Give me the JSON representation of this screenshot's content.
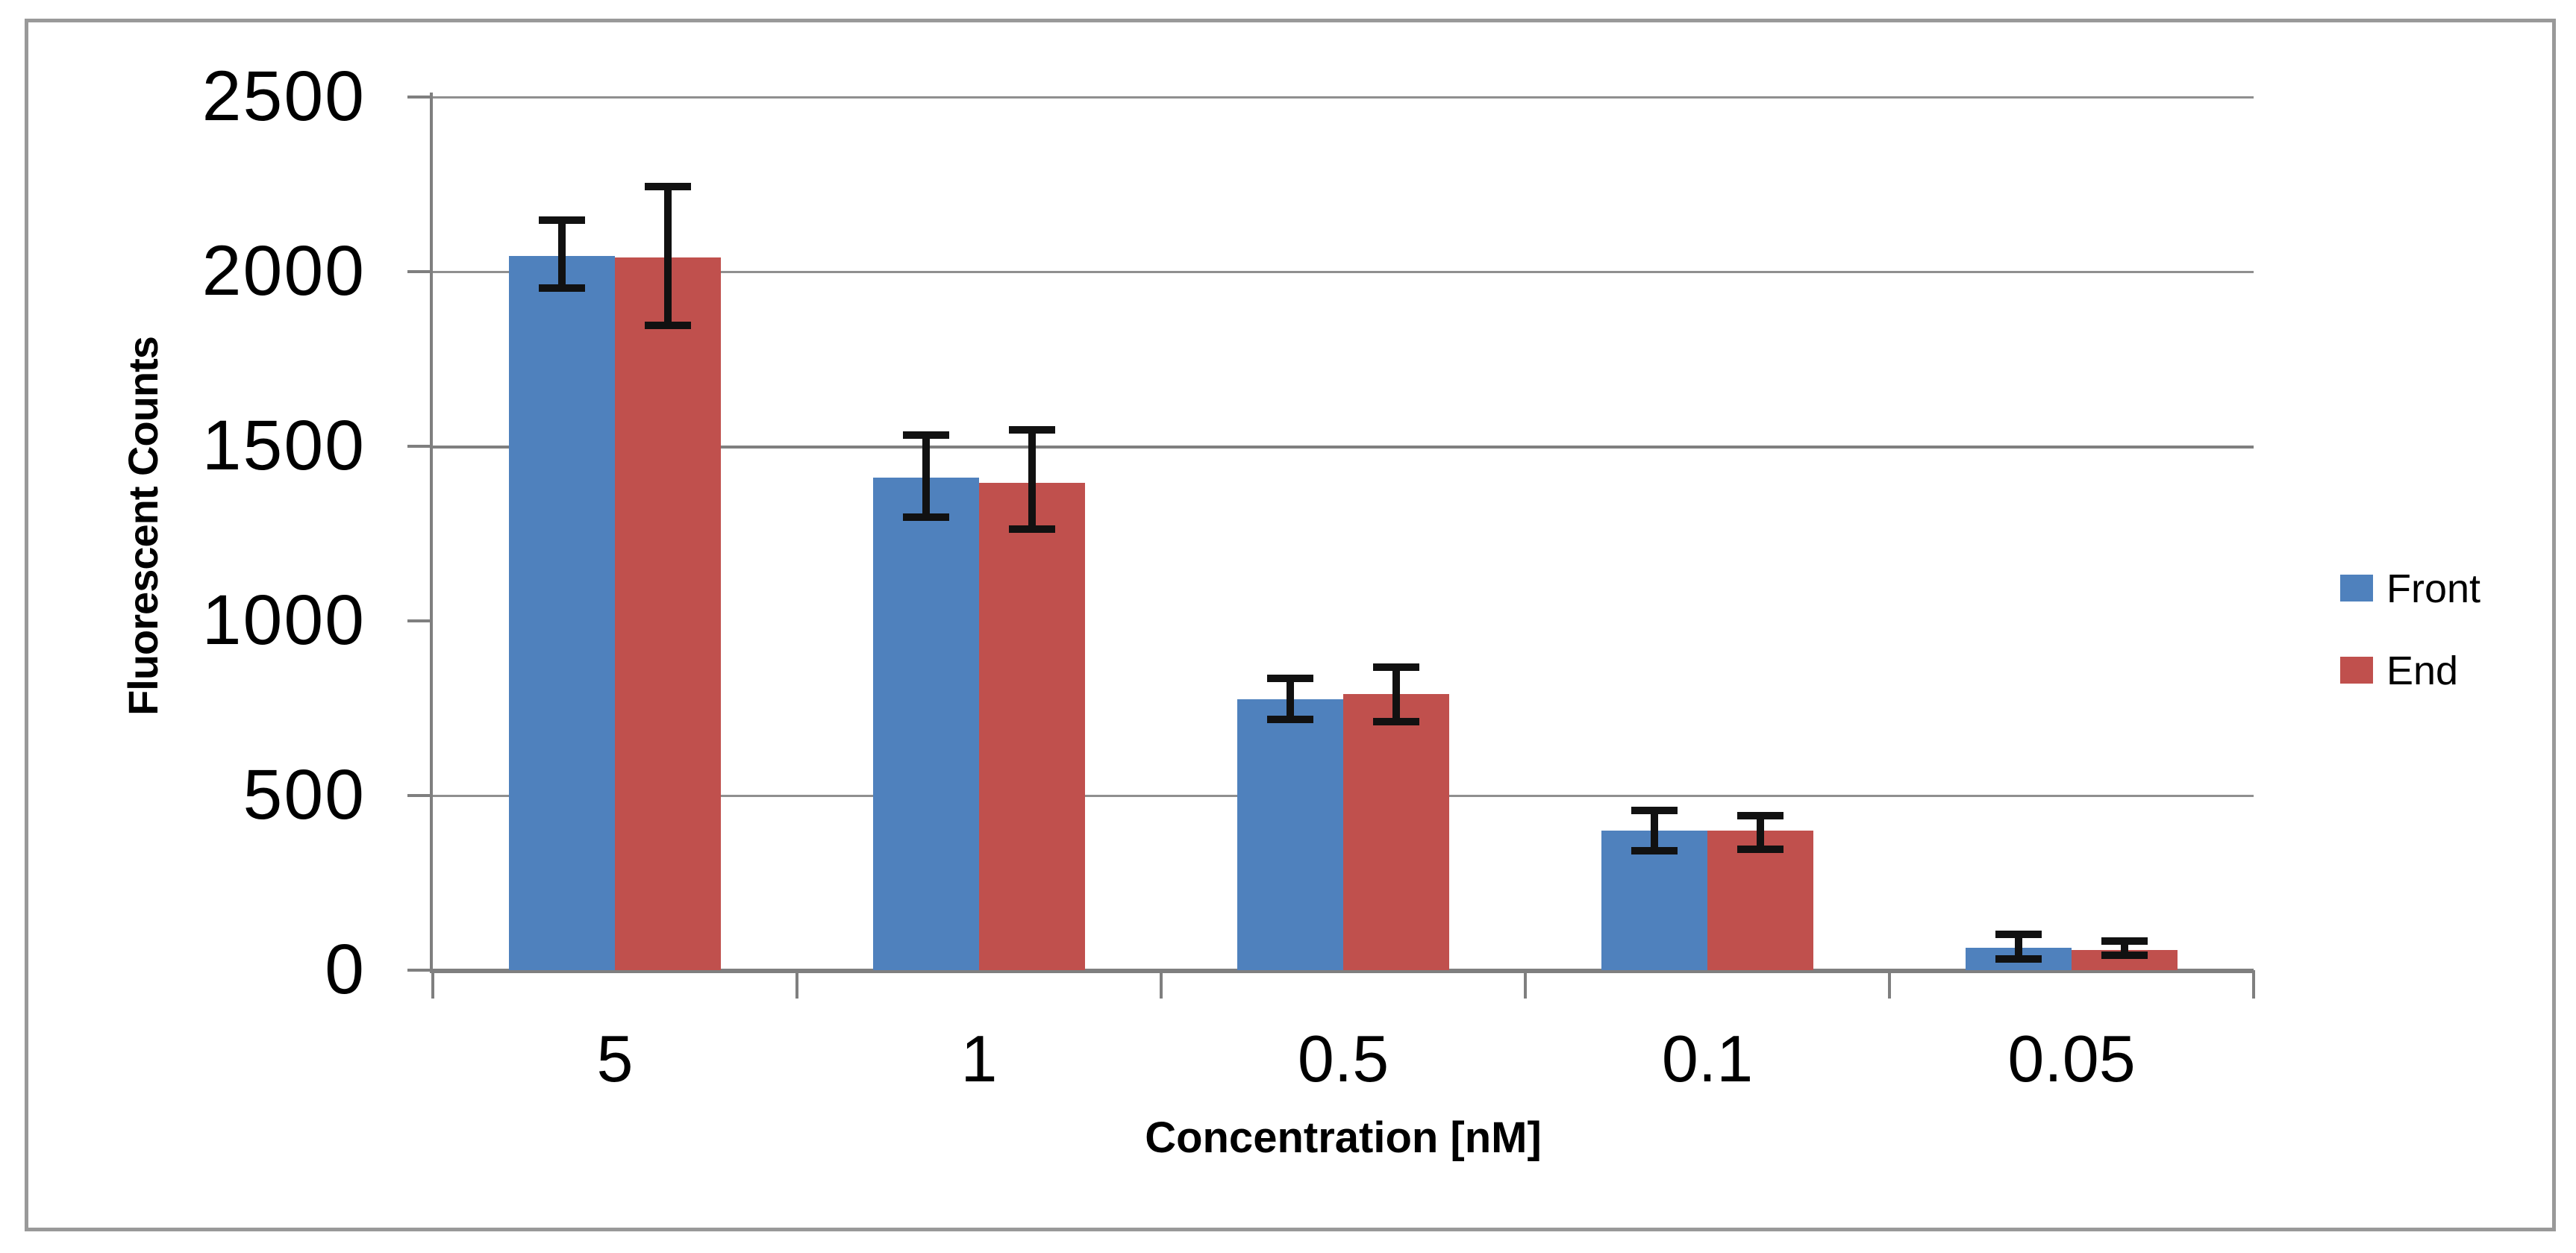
{
  "chart_data": {
    "type": "bar",
    "title": "",
    "categories": [
      "5",
      "1",
      "0.5",
      "0.1",
      "0.05"
    ],
    "series": [
      {
        "name": "Front",
        "color": "#4F81BD",
        "values": [
          2045,
          1410,
          775,
          400,
          65
        ],
        "err_plus": [
          105,
          125,
          62,
          60,
          40
        ],
        "err_minus": [
          95,
          115,
          60,
          60,
          35
        ]
      },
      {
        "name": "End",
        "color": "#C0504D",
        "values": [
          2040,
          1395,
          790,
          400,
          58
        ],
        "err_plus": [
          205,
          155,
          80,
          45,
          28
        ],
        "err_minus": [
          195,
          135,
          80,
          55,
          18
        ]
      }
    ],
    "xlabel": "Concentration [nM]",
    "ylabel": "Fluorescent Counts",
    "ylim": [
      0,
      2500
    ],
    "ytick_interval": 500,
    "ytick_labels": [
      "2500",
      "2000",
      "1500",
      "1000",
      "500",
      "0"
    ],
    "gridline_values": [
      2500,
      2000,
      1500,
      500
    ],
    "grid": "horizontal-only",
    "legend_position": "right",
    "legend_entries": [
      "Front",
      "End"
    ],
    "error_bar_color": "#000000",
    "axis_color": "#7f7f7f",
    "gridline_color": "#8f8f8f",
    "frame_border_color": "#999999",
    "background_color": "#ffffff"
  }
}
